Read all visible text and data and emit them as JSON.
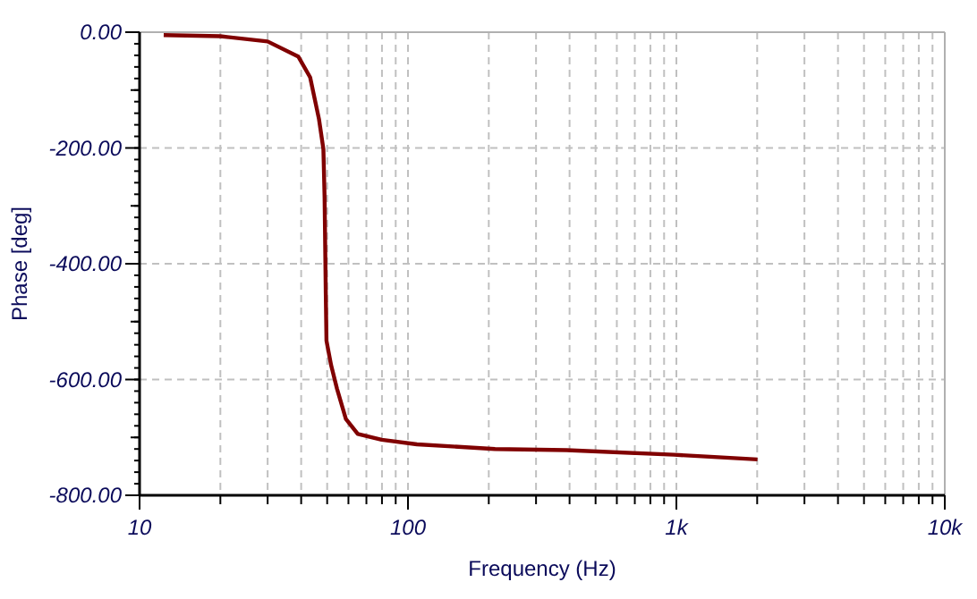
{
  "chart_data": {
    "type": "line",
    "xlabel": "Frequency (Hz)",
    "ylabel": "Phase [deg]",
    "log": "x",
    "grid": true,
    "marker": "none",
    "line_style": "solid",
    "xlim": [
      10,
      10000
    ],
    "ylim": [
      -800,
      0
    ],
    "xticks": [
      10,
      {
        "value": 20,
        "label": null
      },
      {
        "value": 30,
        "label": null
      },
      {
        "value": 40,
        "label": null
      },
      {
        "value": 50,
        "label": null
      },
      {
        "value": 60,
        "label": null
      },
      {
        "value": 70,
        "label": null
      },
      {
        "value": 80,
        "label": null
      },
      {
        "value": 90,
        "label": null
      },
      100,
      {
        "value": 200,
        "label": null
      },
      {
        "value": 300,
        "label": null
      },
      {
        "value": 400,
        "label": null
      },
      {
        "value": 500,
        "label": null
      },
      {
        "value": 600,
        "label": null
      },
      {
        "value": 700,
        "label": null
      },
      {
        "value": 800,
        "label": null
      },
      {
        "value": 900,
        "label": null
      },
      {
        "value": 1000,
        "label": "1k"
      },
      {
        "value": 2000,
        "label": null
      },
      {
        "value": 3000,
        "label": null
      },
      {
        "value": 4000,
        "label": null
      },
      {
        "value": 5000,
        "label": null
      },
      {
        "value": 6000,
        "label": null
      },
      {
        "value": 7000,
        "label": null
      },
      {
        "value": 8000,
        "label": null
      },
      {
        "value": 9000,
        "label": null
      },
      {
        "value": 10000,
        "label": "10k"
      }
    ],
    "yticks": [
      {
        "value": -800,
        "label": "-800.00"
      },
      {
        "value": -700,
        "label": null
      },
      {
        "value": -600,
        "label": "-600.00"
      },
      {
        "value": -500,
        "label": null
      },
      {
        "value": -400,
        "label": "-400.00"
      },
      {
        "value": -300,
        "label": null
      },
      {
        "value": -200,
        "label": "-200.00"
      },
      {
        "value": -100,
        "label": null
      },
      {
        "value": 0,
        "label": "0.00"
      }
    ],
    "series": [
      {
        "color": "#800000",
        "x": [
          12.3,
          20,
          30,
          39,
          43.2,
          46.6,
          48.4,
          48.9,
          49.4,
          49.7,
          51.7,
          54.4,
          58.7,
          65,
          79.8,
          108,
          211,
          390,
          980,
          2005
        ],
        "values": [
          -5,
          -7,
          -16,
          -42,
          -78,
          -150,
          -202,
          -285,
          -450,
          -533,
          -575,
          -616,
          -668,
          -694,
          -704,
          -712,
          -720,
          -722,
          -730,
          -738
        ]
      }
    ]
  }
}
